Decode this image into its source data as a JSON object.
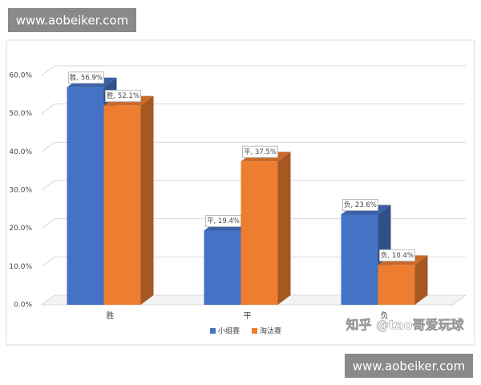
{
  "chart_data": {
    "type": "bar3d",
    "categories": [
      "胜",
      "平",
      "负"
    ],
    "series": [
      {
        "name": "小组赛",
        "color": "#4472c4",
        "values": [
          56.9,
          19.4,
          23.6
        ],
        "value_labels": [
          "胜, 56.9%",
          "平, 19.4%",
          "负, 23.6%"
        ]
      },
      {
        "name": "淘汰赛",
        "color": "#ed7d31",
        "values": [
          52.1,
          37.5,
          10.4
        ],
        "value_labels": [
          "胜, 52.1%",
          "平, 37.5%",
          "负, 10.4%"
        ]
      }
    ],
    "ylim": [
      0,
      60
    ],
    "yticks": [
      {
        "value": 0,
        "label": "0.0%"
      },
      {
        "value": 10,
        "label": "10.0%"
      },
      {
        "value": 20,
        "label": "20.0%"
      },
      {
        "value": 30,
        "label": "30.0%"
      },
      {
        "value": 40,
        "label": "40.0%"
      },
      {
        "value": 50,
        "label": "50.0%"
      },
      {
        "value": 60,
        "label": "60.0%"
      }
    ],
    "grid": true,
    "legend": "bottom"
  },
  "watermarks": {
    "top": "www.aobeiker.com",
    "bottom": "www.aobeiker.com",
    "credit": "知乎 @tao哥爱玩球"
  }
}
